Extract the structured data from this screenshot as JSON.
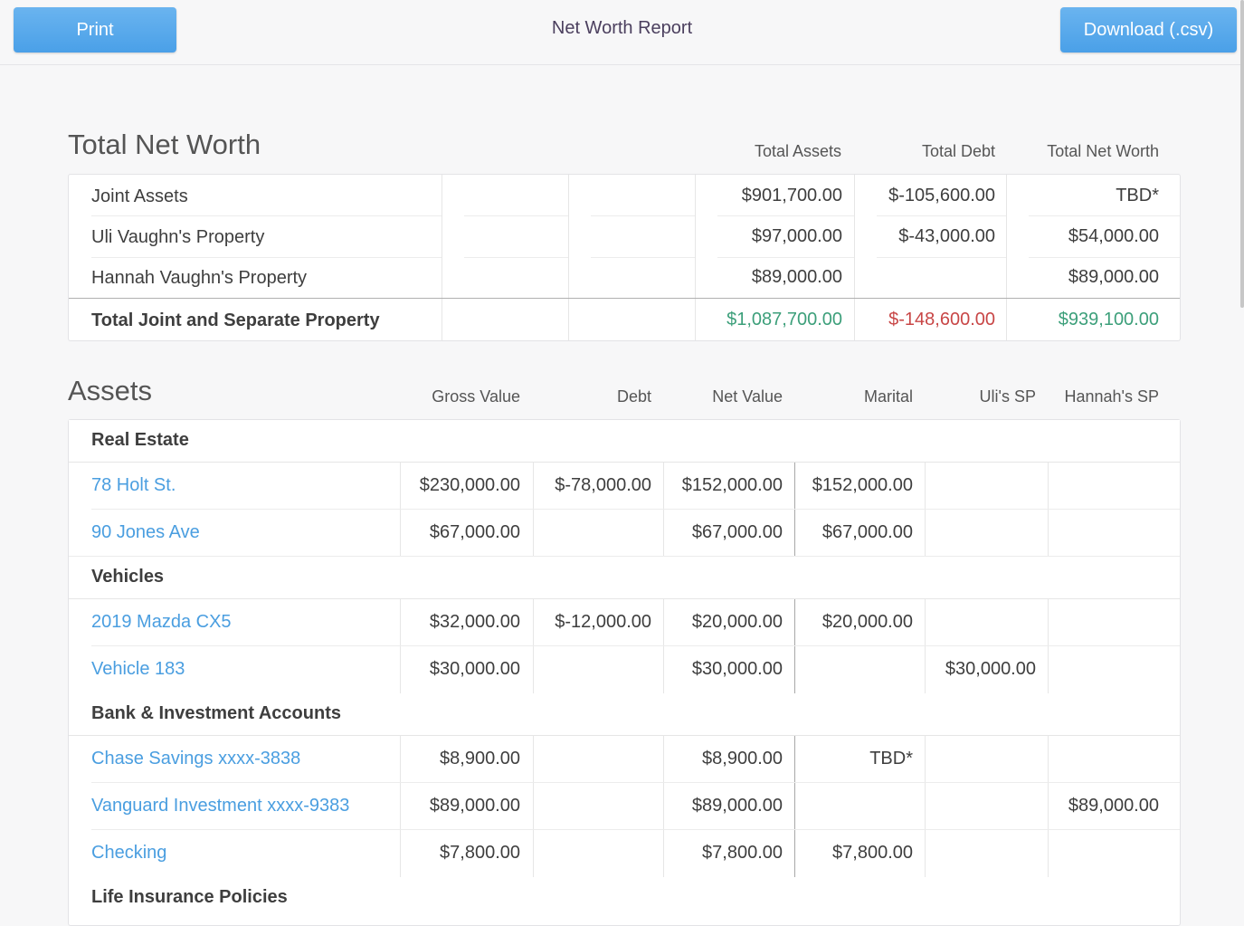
{
  "header": {
    "print_label": "Print",
    "title": "Net Worth Report",
    "download_label": "Download (.csv)"
  },
  "net_worth": {
    "title": "Total Net Worth",
    "columns": [
      "Total Assets",
      "Total Debt",
      "Total Net Worth"
    ],
    "rows": [
      {
        "label": "Joint Assets",
        "assets": "$901,700.00",
        "debt": "$-105,600.00",
        "net": "TBD*"
      },
      {
        "label": "Uli Vaughn's Property",
        "assets": "$97,000.00",
        "debt": "$-43,000.00",
        "net": "$54,000.00"
      },
      {
        "label": "Hannah Vaughn's Property",
        "assets": "$89,000.00",
        "debt": "",
        "net": "$89,000.00"
      }
    ],
    "total": {
      "label": "Total Joint and Separate Property",
      "assets": "$1,087,700.00",
      "debt": "$-148,600.00",
      "net": "$939,100.00"
    }
  },
  "assets": {
    "title": "Assets",
    "columns": [
      "Gross Value",
      "Debt",
      "Net Value",
      "Marital",
      "Uli's SP",
      "Hannah's SP"
    ],
    "groups": [
      {
        "label": "Real Estate",
        "items": [
          {
            "name": "78 Holt St.",
            "gross": "$230,000.00",
            "debt": "$-78,000.00",
            "net": "$152,000.00",
            "marital": "$152,000.00",
            "uli": "",
            "hannah": ""
          },
          {
            "name": "90 Jones Ave",
            "gross": "$67,000.00",
            "debt": "",
            "net": "$67,000.00",
            "marital": "$67,000.00",
            "uli": "",
            "hannah": ""
          }
        ]
      },
      {
        "label": "Vehicles",
        "items": [
          {
            "name": "2019 Mazda CX5",
            "gross": "$32,000.00",
            "debt": "$-12,000.00",
            "net": "$20,000.00",
            "marital": "$20,000.00",
            "uli": "",
            "hannah": ""
          },
          {
            "name": "Vehicle 183",
            "gross": "$30,000.00",
            "debt": "",
            "net": "$30,000.00",
            "marital": "",
            "uli": "$30,000.00",
            "hannah": ""
          }
        ]
      },
      {
        "label": "Bank & Investment Accounts",
        "items": [
          {
            "name": "Chase Savings xxxx-3838",
            "gross": "$8,900.00",
            "debt": "",
            "net": "$8,900.00",
            "marital": "TBD*",
            "uli": "",
            "hannah": ""
          },
          {
            "name": "Vanguard Investment xxxx-9383",
            "gross": "$89,000.00",
            "debt": "",
            "net": "$89,000.00",
            "marital": "",
            "uli": "",
            "hannah": "$89,000.00"
          },
          {
            "name": "Checking",
            "gross": "$7,800.00",
            "debt": "",
            "net": "$7,800.00",
            "marital": "$7,800.00",
            "uli": "",
            "hannah": ""
          }
        ]
      },
      {
        "label": "Life Insurance Policies",
        "items": []
      }
    ]
  },
  "colors": {
    "accent_button": "#4aa0e8",
    "link": "#4a9ee0",
    "positive": "#3c9f7a",
    "negative": "#c84646"
  }
}
